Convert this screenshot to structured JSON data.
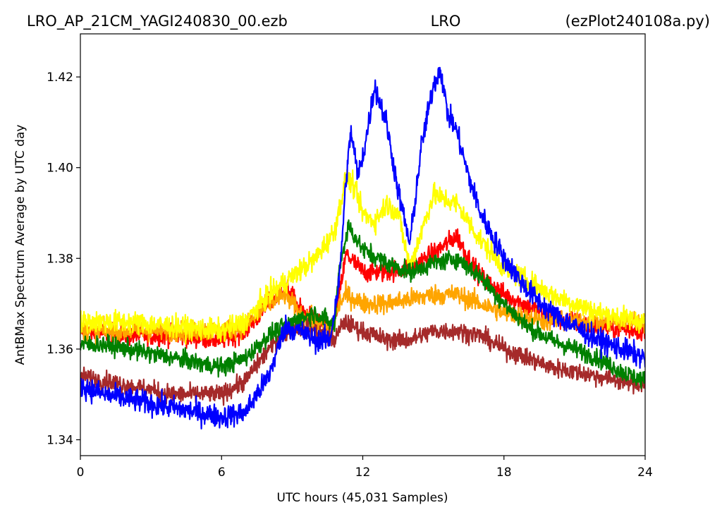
{
  "header": {
    "left": "LRO_AP_21CM_YAGI240830_00.ezb",
    "center": "LRO",
    "right": "(ezPlot240108a.py)"
  },
  "chart_data": {
    "type": "line",
    "xlabel": "UTC hours  (45,031 Samples)",
    "ylabel": "AntBMax Spectrum Average by UTC day",
    "xlim": [
      0,
      24
    ],
    "ylim": [
      1.3365,
      1.4295
    ],
    "x_ticks": [
      0,
      6,
      12,
      18,
      24
    ],
    "x_tick_labels": [
      "0",
      "6",
      "12",
      "18",
      "24"
    ],
    "y_ticks": [
      1.34,
      1.36,
      1.38,
      1.4,
      1.42
    ],
    "y_tick_labels": [
      "1.34",
      "1.36",
      "1.38",
      "1.40",
      "1.42"
    ],
    "grid": false,
    "legend": "none",
    "series": [
      {
        "color": "#ff0000",
        "noise": 0.0022,
        "x": [
          0,
          2,
          4,
          6,
          7,
          8,
          8.7,
          9.3,
          10,
          10.7,
          11,
          11.3,
          12,
          13,
          14,
          15,
          16,
          16.5,
          17,
          18,
          20,
          22,
          24
        ],
        "y": [
          1.364,
          1.363,
          1.363,
          1.362,
          1.364,
          1.37,
          1.374,
          1.369,
          1.366,
          1.364,
          1.372,
          1.381,
          1.377,
          1.377,
          1.378,
          1.381,
          1.385,
          1.38,
          1.376,
          1.372,
          1.367,
          1.365,
          1.364
        ]
      },
      {
        "color": "#ffa500",
        "noise": 0.0022,
        "x": [
          0,
          2,
          4,
          6,
          7,
          8,
          8.7,
          9.3,
          10,
          10.7,
          11,
          11.3,
          12,
          13,
          14,
          15,
          16,
          17,
          18,
          20,
          22,
          24
        ],
        "y": [
          1.364,
          1.364,
          1.364,
          1.364,
          1.365,
          1.37,
          1.372,
          1.368,
          1.366,
          1.364,
          1.37,
          1.372,
          1.37,
          1.37,
          1.371,
          1.372,
          1.372,
          1.37,
          1.368,
          1.366,
          1.366,
          1.366
        ]
      },
      {
        "color": "#ffff00",
        "noise": 0.0024,
        "x": [
          0,
          2,
          4,
          6,
          7,
          8,
          9,
          10,
          10.8,
          11.3,
          11.6,
          12,
          12.5,
          13,
          13.5,
          14,
          15,
          16,
          17,
          18,
          20,
          22,
          24
        ],
        "y": [
          1.366,
          1.366,
          1.365,
          1.364,
          1.366,
          1.372,
          1.376,
          1.38,
          1.386,
          1.398,
          1.396,
          1.39,
          1.388,
          1.392,
          1.39,
          1.378,
          1.394,
          1.392,
          1.384,
          1.378,
          1.372,
          1.368,
          1.366
        ]
      },
      {
        "color": "#a52a2a",
        "noise": 0.002,
        "x": [
          0,
          2,
          4,
          6,
          7,
          8,
          9,
          10,
          10.8,
          11.2,
          12,
          13,
          14,
          15,
          16,
          17,
          18,
          19,
          20,
          21,
          22,
          23,
          24
        ],
        "y": [
          1.354,
          1.352,
          1.35,
          1.35,
          1.353,
          1.36,
          1.365,
          1.364,
          1.362,
          1.366,
          1.364,
          1.362,
          1.362,
          1.364,
          1.364,
          1.363,
          1.36,
          1.358,
          1.356,
          1.355,
          1.354,
          1.353,
          1.352
        ]
      },
      {
        "color": "#008000",
        "noise": 0.002,
        "x": [
          0,
          1,
          3,
          5,
          6,
          7,
          8,
          9,
          10,
          10.8,
          11,
          11.4,
          12,
          13,
          14,
          15,
          16,
          17,
          18,
          19,
          20,
          21,
          22,
          23,
          24
        ],
        "y": [
          1.361,
          1.361,
          1.359,
          1.357,
          1.356,
          1.358,
          1.363,
          1.366,
          1.368,
          1.365,
          1.378,
          1.387,
          1.382,
          1.379,
          1.377,
          1.379,
          1.38,
          1.376,
          1.37,
          1.365,
          1.362,
          1.36,
          1.358,
          1.355,
          1.353
        ]
      },
      {
        "color": "#0000ff",
        "noise": 0.0025,
        "x": [
          0,
          1,
          2,
          3,
          4,
          5,
          6,
          7,
          8,
          8.7,
          9.3,
          10,
          10.6,
          11,
          11.3,
          11.5,
          11.8,
          12.1,
          12.5,
          13,
          13.5,
          14,
          14.5,
          15,
          15.3,
          15.6,
          16,
          16.5,
          17,
          18,
          19,
          20,
          21,
          22,
          23,
          24
        ],
        "y": [
          1.352,
          1.35,
          1.349,
          1.348,
          1.347,
          1.346,
          1.345,
          1.346,
          1.354,
          1.365,
          1.364,
          1.362,
          1.362,
          1.375,
          1.398,
          1.408,
          1.398,
          1.405,
          1.418,
          1.41,
          1.395,
          1.383,
          1.405,
          1.418,
          1.422,
          1.412,
          1.408,
          1.398,
          1.39,
          1.38,
          1.373,
          1.368,
          1.365,
          1.362,
          1.36,
          1.358
        ]
      }
    ]
  }
}
